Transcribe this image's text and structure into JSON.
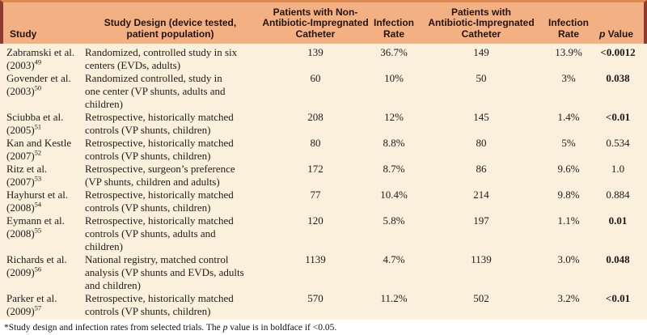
{
  "colors": {
    "header_bg": "#f3b083",
    "header_top_border": "#dd8a52",
    "side_stripe": "#8f3b33",
    "body_bg": "#fbf0db",
    "text": "#1c1c1c"
  },
  "headers": {
    "study": "Study",
    "design": "Study Design (device tested,\npatient population)",
    "non_aic": "Patients with Non-\nAntibiotic-Impregnated\nCatheter",
    "infection_rate_1": "Infection\nRate",
    "aic": "Patients with\nAntibiotic-Impregnated\nCatheter",
    "infection_rate_2": "Infection\nRate",
    "p_italic": "p",
    "p_rest": " Value"
  },
  "rows": [
    {
      "study": "Zabramski et al.\n(2003)",
      "ref": "49",
      "design": "Randomized, controlled study in six\ncenters (EVDs, adults)",
      "n1": "139",
      "r1": "36.7%",
      "n2": "149",
      "r2": "13.9%",
      "p": "<0.0012",
      "p_bold": true
    },
    {
      "study": "Govender et al.\n(2003)",
      "ref": "50",
      "design": "Randomized controlled, study in\none center (VP shunts, adults and\nchildren)",
      "n1": "60",
      "r1": "10%",
      "n2": "50",
      "r2": "3%",
      "p": "0.038",
      "p_bold": true
    },
    {
      "study": "Sciubba et al.\n(2005)",
      "ref": "51",
      "design": "Retrospective, historically matched\ncontrols (VP shunts, children)",
      "n1": "208",
      "r1": "12%",
      "n2": "145",
      "r2": "1.4%",
      "p": "<0.01",
      "p_bold": true
    },
    {
      "study": "Kan and Kestle\n(2007)",
      "ref": "52",
      "design": "Retrospective, historically matched\ncontrols (VP shunts, children)",
      "n1": "80",
      "r1": "8.8%",
      "n2": "80",
      "r2": "5%",
      "p": "0.534",
      "p_bold": false
    },
    {
      "study": "Ritz et al.\n(2007)",
      "ref": "53",
      "design": "Retrospective, surgeon’s preference\n(VP shunts, children and adults)",
      "n1": "172",
      "r1": "8.7%",
      "n2": "86",
      "r2": "9.6%",
      "p": "1.0",
      "p_bold": false
    },
    {
      "study": "Hayhurst et al.\n(2008)",
      "ref": "54",
      "design": "Retrospective, historically matched\ncontrols (VP shunts, children)",
      "n1": "77",
      "r1": "10.4%",
      "n2": "214",
      "r2": "9.8%",
      "p": "0.884",
      "p_bold": false
    },
    {
      "study": "Eymann et al.\n(2008)",
      "ref": "55",
      "design": "Retrospective, historically matched\ncontrols (VP shunts, adults and\nchildren)",
      "n1": "120",
      "r1": "5.8%",
      "n2": "197",
      "r2": "1.1%",
      "p": "0.01",
      "p_bold": true
    },
    {
      "study": "Richards et al.\n(2009)",
      "ref": "56",
      "design": "National registry, matched control\nanalysis (VP shunts and EVDs, adults\nand children)",
      "n1": "1139",
      "r1": "4.7%",
      "n2": "1139",
      "r2": "3.0%",
      "p": "0.048",
      "p_bold": true
    },
    {
      "study": "Parker et al.\n(2009)",
      "ref": "57",
      "design": "Retrospective, historically matched\ncontrols (VP shunts, children)",
      "n1": "570",
      "r1": "11.2%",
      "n2": "502",
      "r2": "3.2%",
      "p": "<0.01",
      "p_bold": true
    }
  ],
  "footnote": {
    "part1": "*Study design and infection rates from selected trials. The ",
    "p_italic": "p",
    "part2": " value is in boldface if <0.05."
  }
}
